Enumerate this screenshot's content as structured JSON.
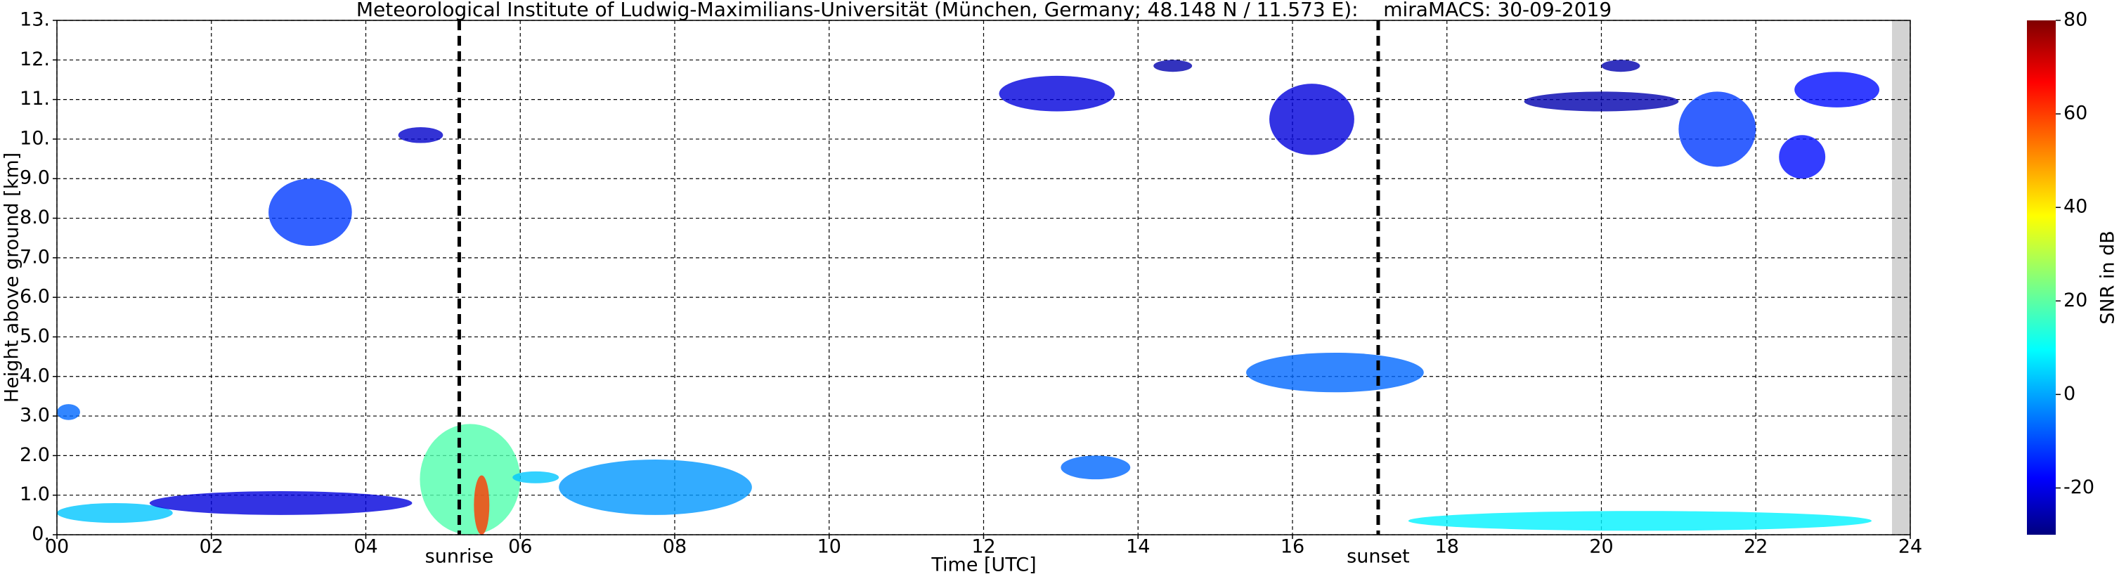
{
  "chart_data": {
    "type": "radar-echo",
    "title": "Meteorological Institute of Ludwig-Maximilians-Universität (München, Germany; 48.148 N / 11.573 E):    miraMACS: 30-09-2019",
    "x_label": "Time [UTC]",
    "y_label": "Height above ground [km]",
    "xlim": [
      0,
      24
    ],
    "xticks": [
      {
        "value": 0,
        "label": "00"
      },
      {
        "value": 2,
        "label": "02"
      },
      {
        "value": 4,
        "label": "04"
      },
      {
        "value": 6,
        "label": "06"
      },
      {
        "value": 8,
        "label": "08"
      },
      {
        "value": 10,
        "label": "10"
      },
      {
        "value": 12,
        "label": "12"
      },
      {
        "value": 14,
        "label": "14"
      },
      {
        "value": 16,
        "label": "16"
      },
      {
        "value": 18,
        "label": "18"
      },
      {
        "value": 20,
        "label": "20"
      },
      {
        "value": 22,
        "label": "22"
      },
      {
        "value": 24,
        "label": "24"
      }
    ],
    "ylim": [
      0,
      13
    ],
    "yticks": [
      {
        "value": 0,
        "label": "0."
      },
      {
        "value": 1,
        "label": "1.0"
      },
      {
        "value": 2,
        "label": "2.0"
      },
      {
        "value": 3,
        "label": "3.0"
      },
      {
        "value": 4,
        "label": "4.0"
      },
      {
        "value": 5,
        "label": "5.0"
      },
      {
        "value": 6,
        "label": "6.0"
      },
      {
        "value": 7,
        "label": "7.0"
      },
      {
        "value": 8,
        "label": "8.0"
      },
      {
        "value": 9,
        "label": "9.0"
      },
      {
        "value": 10,
        "label": "10."
      },
      {
        "value": 11,
        "label": "11."
      },
      {
        "value": 12,
        "label": "12."
      },
      {
        "value": 13,
        "label": "13."
      }
    ],
    "grid": true,
    "markers": [
      {
        "name": "sunrise",
        "x": 5.21
      },
      {
        "name": "sunset",
        "x": 17.11
      }
    ],
    "colorbar": {
      "label": "SNR in dB",
      "colormap": "jet",
      "lim": [
        -30,
        80
      ],
      "ticks": [
        -20,
        0,
        20,
        40,
        60,
        80
      ]
    },
    "echoes": [
      {
        "x": [
          0,
          0.3
        ],
        "y": [
          2.9,
          3.3
        ],
        "snr": -5
      },
      {
        "x": [
          0,
          1.5
        ],
        "y": [
          0.3,
          0.8
        ],
        "snr": 5
      },
      {
        "x": [
          1.2,
          4.6
        ],
        "y": [
          0.5,
          1.1
        ],
        "snr": -20
      },
      {
        "x": [
          2.74,
          3.82
        ],
        "y": [
          7.3,
          9.0
        ],
        "snr": -10
      },
      {
        "x": [
          4.42,
          5.0
        ],
        "y": [
          9.9,
          10.3
        ],
        "snr": -22
      },
      {
        "x": [
          4.7,
          6.0
        ],
        "y": [
          0,
          2.8
        ],
        "snr": 20
      },
      {
        "x": [
          5.4,
          5.6
        ],
        "y": [
          0,
          1.5
        ],
        "snr": 60
      },
      {
        "x": [
          5.9,
          6.5
        ],
        "y": [
          1.3,
          1.6
        ],
        "snr": 5
      },
      {
        "x": [
          6.5,
          9.0
        ],
        "y": [
          0.5,
          1.9
        ],
        "snr": 0
      },
      {
        "x": [
          12.2,
          13.7
        ],
        "y": [
          10.7,
          11.6
        ],
        "snr": -20
      },
      {
        "x": [
          13.0,
          13.9
        ],
        "y": [
          1.4,
          2.0
        ],
        "snr": -5
      },
      {
        "x": [
          14.2,
          14.7
        ],
        "y": [
          11.7,
          12.0
        ],
        "snr": -25
      },
      {
        "x": [
          15.7,
          16.8
        ],
        "y": [
          9.6,
          11.4
        ],
        "snr": -20
      },
      {
        "x": [
          15.4,
          17.7
        ],
        "y": [
          3.6,
          4.6
        ],
        "snr": -5
      },
      {
        "x": [
          19.0,
          21.0
        ],
        "y": [
          10.7,
          11.2
        ],
        "snr": -25
      },
      {
        "x": [
          20.0,
          20.5
        ],
        "y": [
          11.7,
          12.0
        ],
        "snr": -25
      },
      {
        "x": [
          21.0,
          22.0
        ],
        "y": [
          9.3,
          11.2
        ],
        "snr": -10
      },
      {
        "x": [
          22.3,
          22.9
        ],
        "y": [
          9.0,
          10.1
        ],
        "snr": -15
      },
      {
        "x": [
          22.5,
          23.6
        ],
        "y": [
          10.8,
          11.7
        ],
        "snr": -15
      },
      {
        "x": [
          17.5,
          23.5
        ],
        "y": [
          0.1,
          0.6
        ],
        "snr": 10
      }
    ]
  }
}
